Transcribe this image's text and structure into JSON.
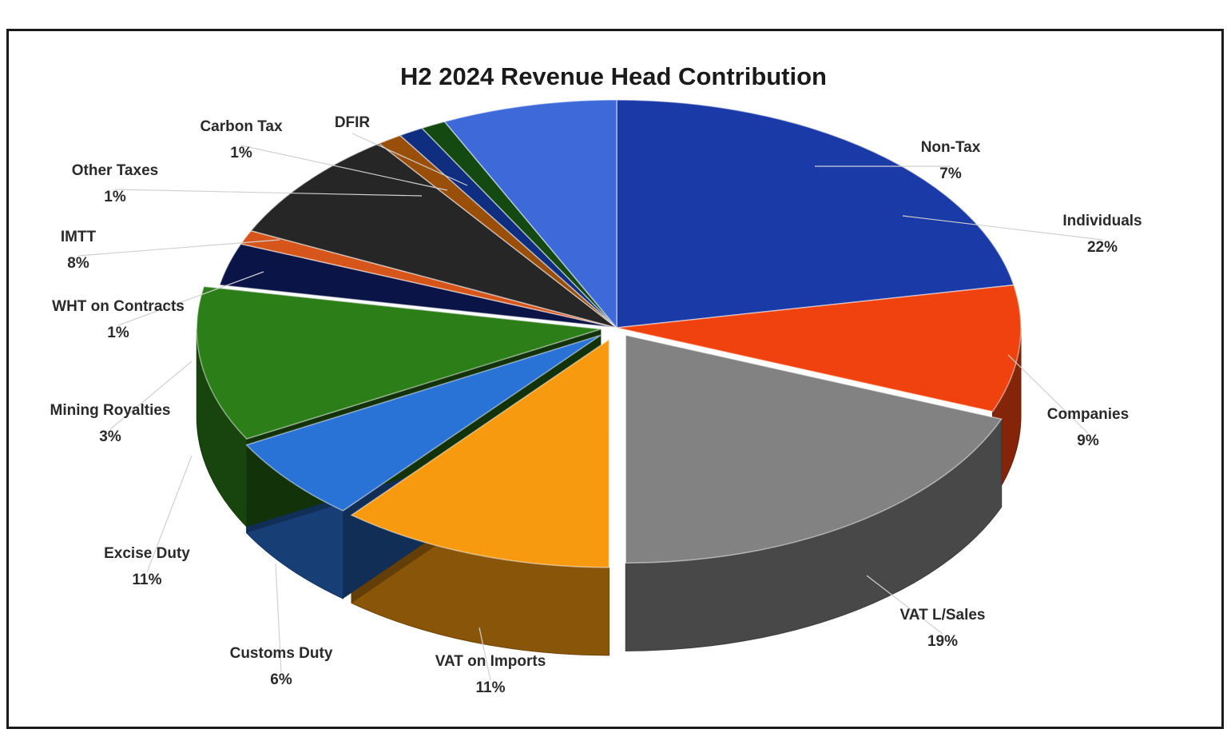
{
  "chart_data": {
    "type": "pie",
    "title": "H2 2024 Revenue Head Contribution",
    "slices": [
      {
        "label": "Individuals",
        "value": 22,
        "display": "22%",
        "color": "#1a3aa8"
      },
      {
        "label": "Companies",
        "value": 9,
        "display": "9%",
        "color": "#f0420e"
      },
      {
        "label": "VAT L/Sales",
        "value": 19,
        "display": "19%",
        "color": "#828282"
      },
      {
        "label": "VAT on Imports",
        "value": 11,
        "display": "11%",
        "color": "#f89a10"
      },
      {
        "label": "Customs Duty",
        "value": 6,
        "display": "6%",
        "color": "#2a73d6"
      },
      {
        "label": "Excise Duty",
        "value": 11,
        "display": "11%",
        "color": "#2c7e19"
      },
      {
        "label": "Mining Royalties",
        "value": 3,
        "display": "3%",
        "color": "#0a1446"
      },
      {
        "label": "WHT on Contracts",
        "value": 1,
        "display": "1%",
        "color": "#d6551a"
      },
      {
        "label": "IMTT",
        "value": 8,
        "display": "8%",
        "color": "#262626"
      },
      {
        "label": "Other Taxes",
        "value": 1,
        "display": "1%",
        "color": "#9a4f08"
      },
      {
        "label": "Carbon Tax",
        "value": 1,
        "display": "1%",
        "color": "#0f2e80"
      },
      {
        "label": "DFIR",
        "value": 1,
        "display": "",
        "color": "#144a12"
      },
      {
        "label": "Non-Tax",
        "value": 7,
        "display": "7%",
        "color": "#3d6ad8"
      }
    ],
    "legend": "none",
    "data_labels": "outside with leader lines",
    "style": "3D exploded pie"
  }
}
